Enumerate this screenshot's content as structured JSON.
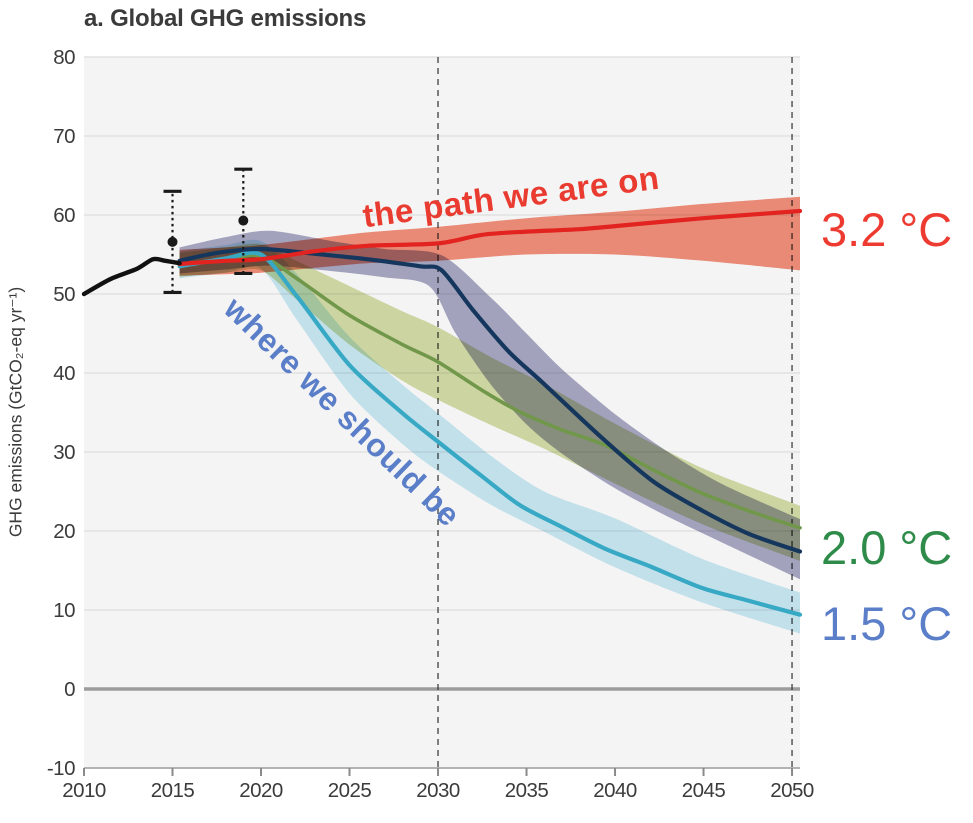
{
  "title": "a. Global GHG emissions",
  "annotations": {
    "path": {
      "text": "the path we are on",
      "color": "#e93b30"
    },
    "should": {
      "text": "where we should be",
      "color": "#5b7ec9"
    }
  },
  "temperature_labels": [
    {
      "text": "3.2 °C",
      "color": "#ee3b31"
    },
    {
      "text": "2.0 °C",
      "color": "#2e8b49"
    },
    {
      "text": "1.5 °C",
      "color": "#5b7ec9"
    }
  ],
  "chart_data": {
    "type": "line",
    "title": "a. Global GHG emissions",
    "xlabel": "",
    "ylabel": "GHG emissions (GtCO₂-eq yr⁻¹)",
    "xlim": [
      2010,
      2050.45
    ],
    "ylim": [
      -10,
      80
    ],
    "xticks": [
      2010,
      2015,
      2020,
      2025,
      2030,
      2035,
      2040,
      2045,
      2050
    ],
    "yticks": [
      -10,
      0,
      10,
      20,
      30,
      40,
      50,
      60,
      70,
      80
    ],
    "grid": true,
    "background": "#f4f4f4",
    "gridline_color": "#e2e2e2",
    "zero_line_color": "#9c9c9c",
    "axis_line_color": "#b3b3b3",
    "tick_color": "#8a8a8a",
    "dashed_line_color": "#3f3f3f",
    "dashed_vlines": [
      2030,
      2050
    ],
    "bands": [
      {
        "name": "net-zero-band",
        "color": "#a9a9c6",
        "top": [
          [
            2015.4,
            55.9
          ],
          [
            2018,
            57.2
          ],
          [
            2020.5,
            58
          ],
          [
            2024,
            56.7
          ],
          [
            2027,
            55.7
          ],
          [
            2030.2,
            54.9
          ],
          [
            2033,
            49.5
          ],
          [
            2035,
            45
          ],
          [
            2037,
            40.5
          ],
          [
            2040,
            34.8
          ],
          [
            2043,
            30
          ],
          [
            2046,
            26
          ],
          [
            2050.45,
            21.5
          ]
        ],
        "bottom": [
          [
            2015.4,
            52.6
          ],
          [
            2018,
            53.1
          ],
          [
            2020.5,
            53.6
          ],
          [
            2024,
            52.9
          ],
          [
            2027,
            52.1
          ],
          [
            2029.5,
            51
          ],
          [
            2031,
            45
          ],
          [
            2033,
            38.5
          ],
          [
            2035,
            33.5
          ],
          [
            2037,
            29.8
          ],
          [
            2040,
            25.4
          ],
          [
            2043,
            21.8
          ],
          [
            2046,
            18.6
          ],
          [
            2050.45,
            13.9
          ]
        ]
      },
      {
        "name": "two-degree-band",
        "color": "#d5dfa9",
        "top": [
          [
            2015.4,
            55.2
          ],
          [
            2018,
            55.9
          ],
          [
            2020,
            56.3
          ],
          [
            2022,
            54.2
          ],
          [
            2025,
            51
          ],
          [
            2028,
            47.8
          ],
          [
            2030,
            45.8
          ],
          [
            2033,
            42
          ],
          [
            2036,
            38.6
          ],
          [
            2040,
            33.6
          ],
          [
            2045,
            27.9
          ],
          [
            2050.45,
            23.2
          ]
        ],
        "bottom": [
          [
            2015.4,
            52.2
          ],
          [
            2018,
            52.7
          ],
          [
            2020,
            53
          ],
          [
            2022,
            49.3
          ],
          [
            2025,
            43.6
          ],
          [
            2028,
            39
          ],
          [
            2030,
            36.6
          ],
          [
            2033,
            33.4
          ],
          [
            2036,
            30.4
          ],
          [
            2040,
            26
          ],
          [
            2045,
            20.8
          ],
          [
            2050.45,
            16.2
          ]
        ]
      },
      {
        "name": "one-five-degree-band",
        "color": "#cbeaf5",
        "top": [
          [
            2015.4,
            55.4
          ],
          [
            2018,
            56.2
          ],
          [
            2020,
            56.7
          ],
          [
            2022,
            52.6
          ],
          [
            2025,
            44.6
          ],
          [
            2028,
            38.5
          ],
          [
            2030,
            34.9
          ],
          [
            2033,
            29.5
          ],
          [
            2036,
            25
          ],
          [
            2040,
            21.6
          ],
          [
            2045,
            16.4
          ],
          [
            2050.45,
            12.2
          ]
        ],
        "bottom": [
          [
            2015.4,
            52
          ],
          [
            2018,
            52.7
          ],
          [
            2020,
            53.2
          ],
          [
            2022,
            46.8
          ],
          [
            2025,
            37.4
          ],
          [
            2028,
            31
          ],
          [
            2030,
            27.6
          ],
          [
            2033,
            23.3
          ],
          [
            2036,
            19.9
          ],
          [
            2040,
            15.4
          ],
          [
            2045,
            10.9
          ],
          [
            2050.45,
            7
          ]
        ]
      },
      {
        "name": "current-path-band",
        "color": "#f3907b",
        "top": [
          [
            2015.4,
            55.6
          ],
          [
            2018,
            55.9
          ],
          [
            2020,
            56.2
          ],
          [
            2023,
            57
          ],
          [
            2026,
            57.8
          ],
          [
            2030,
            58.5
          ],
          [
            2035,
            59.6
          ],
          [
            2040,
            60.4
          ],
          [
            2045,
            61.4
          ],
          [
            2050.45,
            62.3
          ]
        ],
        "bottom": [
          [
            2015.4,
            52.3
          ],
          [
            2018,
            52.5
          ],
          [
            2020,
            52.7
          ],
          [
            2023,
            53.3
          ],
          [
            2026,
            53.9
          ],
          [
            2030,
            54.2
          ],
          [
            2035,
            55
          ],
          [
            2040,
            55
          ],
          [
            2045,
            54.2
          ],
          [
            2050.45,
            53
          ]
        ]
      }
    ],
    "series": [
      {
        "name": "two-degree-line",
        "label": "2.0 °C",
        "color": "#71974a",
        "width": 3.6,
        "points": [
          [
            2015.4,
            53.7
          ],
          [
            2018,
            54.4
          ],
          [
            2020,
            54.8
          ],
          [
            2022,
            52
          ],
          [
            2025,
            47.3
          ],
          [
            2028,
            43.6
          ],
          [
            2030,
            41.4
          ],
          [
            2032.5,
            37.8
          ],
          [
            2034.6,
            35.1
          ],
          [
            2037,
            32.8
          ],
          [
            2039.4,
            30.9
          ],
          [
            2042.2,
            27.7
          ],
          [
            2045,
            24.7
          ],
          [
            2048,
            22.2
          ],
          [
            2050.45,
            20.4
          ]
        ]
      },
      {
        "name": "one-five-degree-line",
        "label": "1.5 °C",
        "color": "#38a9c5",
        "width": 4.2,
        "points": [
          [
            2015.4,
            53.5
          ],
          [
            2018,
            54.5
          ],
          [
            2020,
            55
          ],
          [
            2022,
            49.8
          ],
          [
            2025,
            41
          ],
          [
            2028,
            34.9
          ],
          [
            2030,
            31.3
          ],
          [
            2032.5,
            26.9
          ],
          [
            2034.6,
            23.3
          ],
          [
            2037,
            20.5
          ],
          [
            2039.4,
            17.8
          ],
          [
            2042,
            15.5
          ],
          [
            2044.9,
            12.8
          ],
          [
            2047.5,
            11.2
          ],
          [
            2050.45,
            9.4
          ]
        ]
      },
      {
        "name": "net-zero-line",
        "label": "where we should be",
        "color": "#16375d",
        "width": 4.2,
        "points": [
          [
            2015.4,
            54.2
          ],
          [
            2017.5,
            55.2
          ],
          [
            2020,
            55.7
          ],
          [
            2023,
            55.1
          ],
          [
            2026,
            54.4
          ],
          [
            2029,
            53.5
          ],
          [
            2030.2,
            53
          ],
          [
            2032,
            47.9
          ],
          [
            2034,
            42.7
          ],
          [
            2036,
            38.6
          ],
          [
            2039.4,
            31.5
          ],
          [
            2042.2,
            26.2
          ],
          [
            2045,
            22.5
          ],
          [
            2047.6,
            19.6
          ],
          [
            2050.45,
            17.4
          ]
        ]
      },
      {
        "name": "current-path-line",
        "label": "3.2 °C",
        "color": "#e2231f",
        "width": 4.2,
        "points": [
          [
            2015.4,
            53.8
          ],
          [
            2018,
            54.2
          ],
          [
            2020,
            54.4
          ],
          [
            2023,
            55.4
          ],
          [
            2026,
            56.1
          ],
          [
            2030,
            56.4
          ],
          [
            2032.5,
            57.5
          ],
          [
            2035,
            57.9
          ],
          [
            2038,
            58.2
          ],
          [
            2041,
            58.8
          ],
          [
            2045,
            59.6
          ],
          [
            2048,
            60.1
          ],
          [
            2050.45,
            60.5
          ]
        ]
      },
      {
        "name": "historical-line",
        "label": "historical",
        "color": "#111111",
        "width": 4.4,
        "points": [
          [
            2010,
            50
          ],
          [
            2011.5,
            51.9
          ],
          [
            2013,
            53.2
          ],
          [
            2013.9,
            54.4
          ],
          [
            2014.6,
            54.2
          ],
          [
            2015.4,
            53.9
          ]
        ]
      }
    ],
    "errorbars": [
      {
        "year": 2015,
        "value": 56.6,
        "low": 50.2,
        "high": 63.0
      },
      {
        "year": 2019,
        "value": 59.3,
        "low": 52.6,
        "high": 65.8
      }
    ]
  }
}
